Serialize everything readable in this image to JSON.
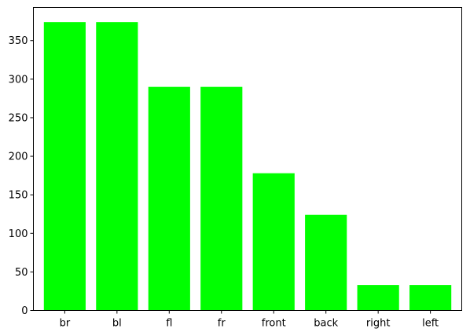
{
  "chart_data": {
    "type": "bar",
    "categories": [
      "br",
      "bl",
      "fl",
      "fr",
      "front",
      "back",
      "right",
      "left"
    ],
    "values": [
      374,
      374,
      290,
      290,
      178,
      124,
      33,
      33
    ],
    "ylim": [
      0,
      393
    ],
    "yticks": [
      0,
      50,
      100,
      150,
      200,
      250,
      300,
      350
    ],
    "bar_color": "#00ff00",
    "title": "",
    "xlabel": "",
    "ylabel": "",
    "grid": false,
    "legend": "none"
  }
}
